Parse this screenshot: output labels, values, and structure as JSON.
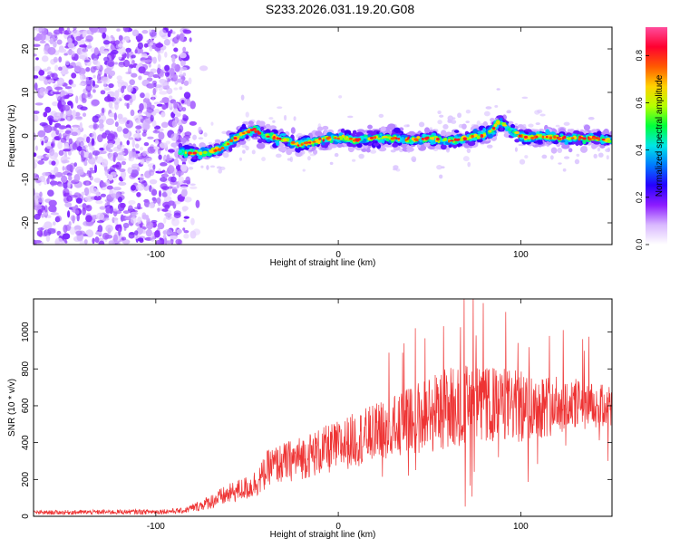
{
  "title": "S233.2026.031.19.20.G08",
  "chart_data": [
    {
      "type": "heatmap",
      "title": "S233.2026.031.19.20.G08",
      "xlabel": "Height of straight line (km)",
      "ylabel": "Frequency (Hz)",
      "xlim": [
        -167,
        150
      ],
      "ylim": [
        -25,
        25
      ],
      "xticks": [
        -100,
        0,
        100
      ],
      "xtick_labels": [
        "-100",
        "0",
        "100"
      ],
      "yticks": [
        -20,
        -10,
        0,
        10,
        20
      ],
      "ytick_labels": [
        "-20",
        "-10",
        "0",
        "10",
        "20"
      ],
      "noise_region_x": [
        -167,
        -82
      ],
      "ridge": {
        "x": [
          -87,
          -80,
          -72,
          -65,
          -58,
          -52,
          -46,
          -40,
          -34,
          -28,
          -22,
          -16,
          -10,
          -4,
          2,
          10,
          20,
          30,
          40,
          50,
          58,
          64,
          70,
          78,
          84,
          88,
          95,
          103,
          112,
          120,
          130,
          140,
          150
        ],
        "frequency": [
          -3.5,
          -4,
          -4,
          -3,
          -1,
          0.5,
          1.5,
          0,
          -0.5,
          -1,
          -2,
          -1.5,
          -1,
          -0.5,
          -0.5,
          -1,
          -0.5,
          -0.5,
          -1,
          -0.5,
          -1,
          -1,
          -0.5,
          0,
          1,
          3.5,
          1,
          -0.5,
          0,
          -0.5,
          -0.5,
          -0.5,
          -1
        ]
      },
      "colorbar": {
        "label": "Normalized spectral amplitude",
        "range": [
          0,
          0.92
        ],
        "ticks": [
          0.0,
          0.2,
          0.4,
          0.6,
          0.8
        ],
        "tick_labels": [
          "0.0",
          "0.2",
          "0.4",
          "0.6",
          "0.8"
        ],
        "colors": [
          "#ffffff",
          "#d9b8ff",
          "#8c1cff",
          "#2600ff",
          "#0078ff",
          "#00e6e6",
          "#00ff3c",
          "#b4ff00",
          "#ffd200",
          "#ff5a00",
          "#ff0030",
          "#ff4c9c"
        ]
      }
    },
    {
      "type": "line",
      "xlabel": "Height of straight line (km)",
      "ylabel": "SNR (10 * v/v)",
      "xlim": [
        -167,
        150
      ],
      "ylim": [
        0,
        1180
      ],
      "xticks": [
        -100,
        0,
        100
      ],
      "xtick_labels": [
        "-100",
        "0",
        "100"
      ],
      "yticks": [
        0,
        200,
        400,
        600,
        800,
        1000
      ],
      "ytick_labels": [
        "0",
        "200",
        "400",
        "600",
        "800",
        "1000"
      ],
      "series": [
        {
          "name": "SNR",
          "color": "#ee3333",
          "x": [
            -167,
            -100,
            -85,
            -75,
            -65,
            -55,
            -48,
            -42,
            -38,
            -30,
            -20,
            -10,
            0,
            10,
            20,
            30,
            40,
            50,
            60,
            70,
            80,
            90,
            100,
            110,
            120,
            130,
            140,
            150
          ],
          "mean": [
            20,
            25,
            30,
            60,
            100,
            140,
            160,
            210,
            270,
            290,
            320,
            350,
            380,
            420,
            450,
            480,
            520,
            560,
            590,
            610,
            600,
            610,
            590,
            600,
            605,
            610,
            590,
            600
          ],
          "spread": [
            12,
            14,
            15,
            30,
            50,
            60,
            70,
            90,
            100,
            110,
            120,
            130,
            140,
            150,
            160,
            170,
            190,
            220,
            230,
            220,
            210,
            200,
            200,
            180,
            160,
            140,
            130,
            120
          ]
        }
      ]
    }
  ]
}
